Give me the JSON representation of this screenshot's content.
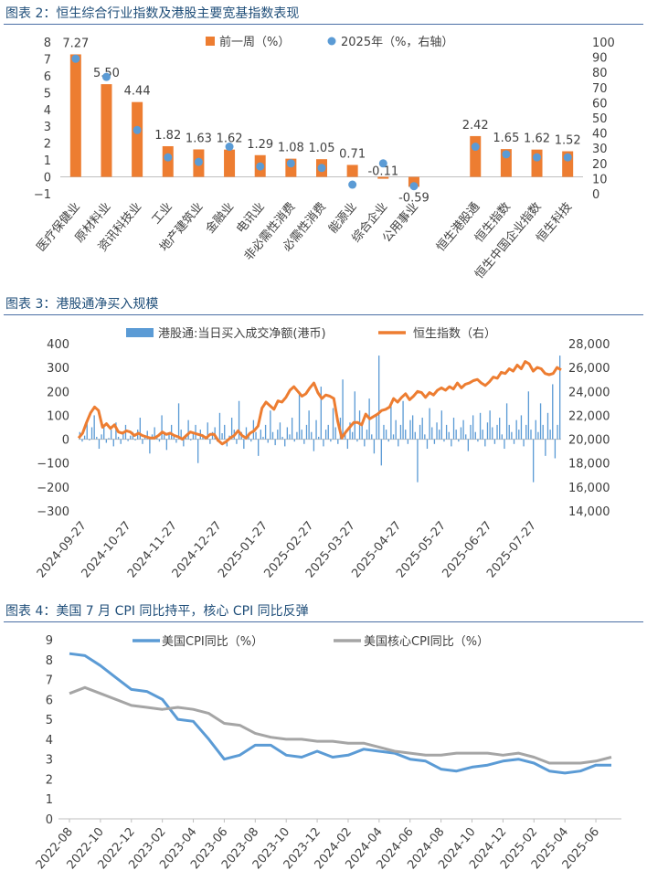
{
  "figures": [
    {
      "title": "图表 2：恒生综合行业指数及港股主要宽基指数表现"
    },
    {
      "title": "图表 3：港股通净买入规模"
    },
    {
      "title": "图表 4：美国 7 月 CPI 同比持平，核心 CPI 同比反弹"
    }
  ],
  "colors": {
    "orange": "#ed7d31",
    "blue": "#5b9bd5",
    "gray": "#a5a5a5",
    "title": "#1f4e79"
  },
  "chart_data": [
    {
      "type": "bar",
      "categories": [
        "医疗保健业",
        "原材料业",
        "资讯科技业",
        "工业",
        "地产建筑业",
        "金融业",
        "电讯业",
        "非必需性消费",
        "必需性消费",
        "能源业",
        "综合企业",
        "公用事业",
        "",
        "恒生港股通",
        "恒生指数",
        "恒生中国企业指数",
        "恒生科技"
      ],
      "series": [
        {
          "name": "前一周（%）",
          "axis": "left",
          "values": [
            7.27,
            5.5,
            4.44,
            1.82,
            1.63,
            1.62,
            1.29,
            1.08,
            1.05,
            0.71,
            -0.11,
            -0.59,
            null,
            2.42,
            1.65,
            1.62,
            1.52
          ],
          "labels": [
            "7.27",
            "5.50",
            "4.44",
            "1.82",
            "1.63",
            "1.62",
            "1.29",
            "1.08",
            "1.05",
            "0.71",
            "-0.11",
            "-0.59",
            "",
            "2.42",
            "1.65",
            "1.62",
            "1.52"
          ]
        },
        {
          "name": "2025年（%，右轴）",
          "axis": "right",
          "type": "scatter",
          "values": [
            89,
            77,
            42,
            24,
            21,
            31,
            18,
            20,
            17,
            6,
            20,
            5,
            null,
            31,
            26,
            24,
            24
          ]
        }
      ],
      "ylim": [
        -1,
        8
      ],
      "yticks": [
        "−1",
        "0",
        "1",
        "2",
        "3",
        "4",
        "5",
        "6",
        "7",
        "8"
      ],
      "y2lim": [
        0,
        100
      ],
      "y2ticks": [
        "0",
        "10",
        "20",
        "30",
        "40",
        "50",
        "60",
        "70",
        "80",
        "90",
        "100"
      ],
      "legend": "top"
    },
    {
      "type": "bar",
      "x_start": "2024-09-24",
      "x_end": "2025-08-15",
      "xticks": [
        "2024-09-27",
        "2024-10-27",
        "2024-11-27",
        "2024-12-27",
        "2025-01-27",
        "2025-02-27",
        "2025-03-27",
        "2025-04-27",
        "2025-05-27",
        "2025-06-27",
        "2025-07-27"
      ],
      "series": [
        {
          "name": "港股通:当日买入成交净额(港币)",
          "axis": "left",
          "type": "bar",
          "note": "daily net buy, HK$ 100m",
          "values": [
            30,
            -10,
            15,
            80,
            -5,
            50,
            100,
            10,
            -40,
            20,
            60,
            -15,
            5,
            40,
            -30,
            70,
            10,
            -20,
            25,
            60,
            -8,
            15,
            30,
            -5,
            40,
            90,
            -20,
            10,
            35,
            -60,
            20,
            50,
            15,
            -10,
            100,
            30,
            -45,
            25,
            60,
            10,
            -15,
            150,
            40,
            -30,
            20,
            80,
            -5,
            30,
            60,
            -100,
            40,
            20,
            10,
            70,
            -20,
            30,
            50,
            -10,
            110,
            25,
            60,
            -30,
            15,
            90,
            40,
            -20,
            160,
            30,
            -40,
            50,
            20,
            -10,
            80,
            30,
            -70,
            40,
            10,
            60,
            -15,
            120,
            30,
            -25,
            40,
            70,
            10,
            -30,
            50,
            20,
            90,
            -10,
            30,
            200,
            40,
            -20,
            60,
            120,
            30,
            -50,
            80,
            10,
            220,
            -30,
            40,
            60,
            -10,
            130,
            50,
            -20,
            90,
            250,
            20,
            -40,
            70,
            30,
            200,
            -10,
            120,
            60,
            -30,
            40,
            170,
            20,
            -60,
            100,
            350,
            -110,
            60,
            40,
            -10,
            150,
            20,
            80,
            -30,
            60,
            160,
            40,
            -20,
            80,
            100,
            30,
            -180,
            60,
            90,
            20,
            -40,
            130,
            50,
            -20,
            70,
            40,
            120,
            -10,
            60,
            30,
            -30,
            90,
            40,
            -10,
            50,
            80,
            20,
            -50,
            60,
            100,
            30,
            -10,
            110,
            40,
            -30,
            70,
            120,
            50,
            -20,
            60,
            90,
            20,
            -40,
            150,
            60,
            30,
            -20,
            80,
            40,
            100,
            -30,
            60,
            200,
            40,
            -180,
            80,
            30,
            150,
            60,
            -70,
            110,
            40,
            230,
            -80,
            60,
            350
          ]
        },
        {
          "name": "恒生指数（右）",
          "axis": "right",
          "type": "line",
          "note": "index level",
          "values": [
            20100,
            20500,
            21400,
            22200,
            22700,
            22400,
            21000,
            21300,
            20900,
            21200,
            20600,
            20500,
            20700,
            20600,
            20300,
            20500,
            20300,
            20200,
            20100,
            20100,
            20300,
            20600,
            20400,
            20500,
            20300,
            20200,
            20000,
            20300,
            20600,
            20500,
            20400,
            20300,
            20100,
            20400,
            20400,
            19900,
            19600,
            19800,
            20100,
            20300,
            20700,
            20300,
            20100,
            20500,
            20700,
            21100,
            22600,
            23100,
            22800,
            22500,
            23200,
            23100,
            23500,
            24100,
            24400,
            24000,
            23600,
            23800,
            24300,
            24700,
            23900,
            23400,
            23700,
            23600,
            23400,
            21500,
            20100,
            20600,
            21000,
            21400,
            21400,
            21200,
            22100,
            21700,
            21900,
            22100,
            22400,
            22500,
            22700,
            23400,
            23100,
            23500,
            23800,
            23300,
            23600,
            24000,
            23900,
            23500,
            23900,
            23700,
            24100,
            24300,
            24100,
            24400,
            24200,
            24700,
            24300,
            24600,
            24700,
            24900,
            25000,
            24700,
            24500,
            24800,
            25200,
            25100,
            25600,
            25500,
            25900,
            25700,
            26200,
            25900,
            26500,
            26300,
            25700,
            26000,
            25900,
            25500,
            25400,
            25500,
            26000,
            25800
          ]
        }
      ],
      "ylim": [
        -300,
        400
      ],
      "yticks": [
        "−300",
        "−200",
        "−100",
        "0",
        "100",
        "200",
        "300",
        "400"
      ],
      "y2lim": [
        14000,
        28000
      ],
      "y2ticks": [
        "14,000",
        "16,000",
        "18,000",
        "20,000",
        "22,000",
        "24,000",
        "26,000",
        "28,000"
      ],
      "legend": "top"
    },
    {
      "type": "line",
      "x_start": "2022-08",
      "x_end": "2025-07",
      "xticks": [
        "2022-08",
        "2022-10",
        "2022-12",
        "2023-02",
        "2023-04",
        "2023-06",
        "2023-08",
        "2023-10",
        "2023-12",
        "2024-02",
        "2024-04",
        "2024-06",
        "2024-08",
        "2024-10",
        "2024-12",
        "2025-02",
        "2025-04",
        "2025-06"
      ],
      "series": [
        {
          "name": "美国CPI同比（%）",
          "values": [
            8.3,
            8.2,
            7.7,
            7.1,
            6.5,
            6.4,
            6.0,
            5.0,
            4.9,
            4.0,
            3.0,
            3.2,
            3.7,
            3.7,
            3.2,
            3.1,
            3.4,
            3.1,
            3.2,
            3.5,
            3.4,
            3.3,
            3.0,
            2.9,
            2.5,
            2.4,
            2.6,
            2.7,
            2.9,
            3.0,
            2.8,
            2.4,
            2.3,
            2.4,
            2.7,
            2.7
          ]
        },
        {
          "name": "美国核心CPI同比（%）",
          "values": [
            6.3,
            6.6,
            6.3,
            6.0,
            5.7,
            5.6,
            5.5,
            5.6,
            5.5,
            5.3,
            4.8,
            4.7,
            4.3,
            4.1,
            4.0,
            4.0,
            3.9,
            3.9,
            3.8,
            3.8,
            3.6,
            3.4,
            3.3,
            3.2,
            3.2,
            3.3,
            3.3,
            3.3,
            3.2,
            3.3,
            3.1,
            2.8,
            2.8,
            2.8,
            2.9,
            3.1
          ]
        }
      ],
      "ylim": [
        0,
        9
      ],
      "yticks": [
        "0",
        "1",
        "2",
        "3",
        "4",
        "5",
        "6",
        "7",
        "8",
        "9"
      ],
      "legend": "top"
    }
  ]
}
